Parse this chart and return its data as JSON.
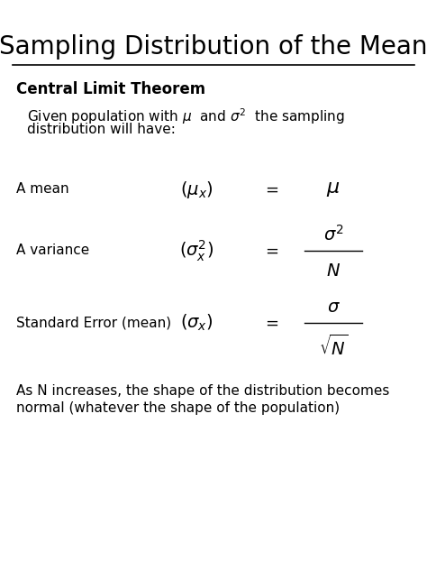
{
  "title": "Sampling Distribution of the Mean",
  "background_color": "#ffffff",
  "text_color": "#000000",
  "fig_width": 4.74,
  "fig_height": 6.32,
  "dpi": 100,
  "section_heading": "Central Limit Theorem",
  "intro_line1": "Given population with $\\mu$  and $\\sigma^{2}$  the sampling",
  "intro_line2": "distribution will have:",
  "row1_label": "A mean",
  "row2_label": "A variance",
  "row3_label": "Standard Error (mean)",
  "footer_line1": "As N increases, the shape of the distribution becomes",
  "footer_line2": "normal (whatever the shape of the population)"
}
